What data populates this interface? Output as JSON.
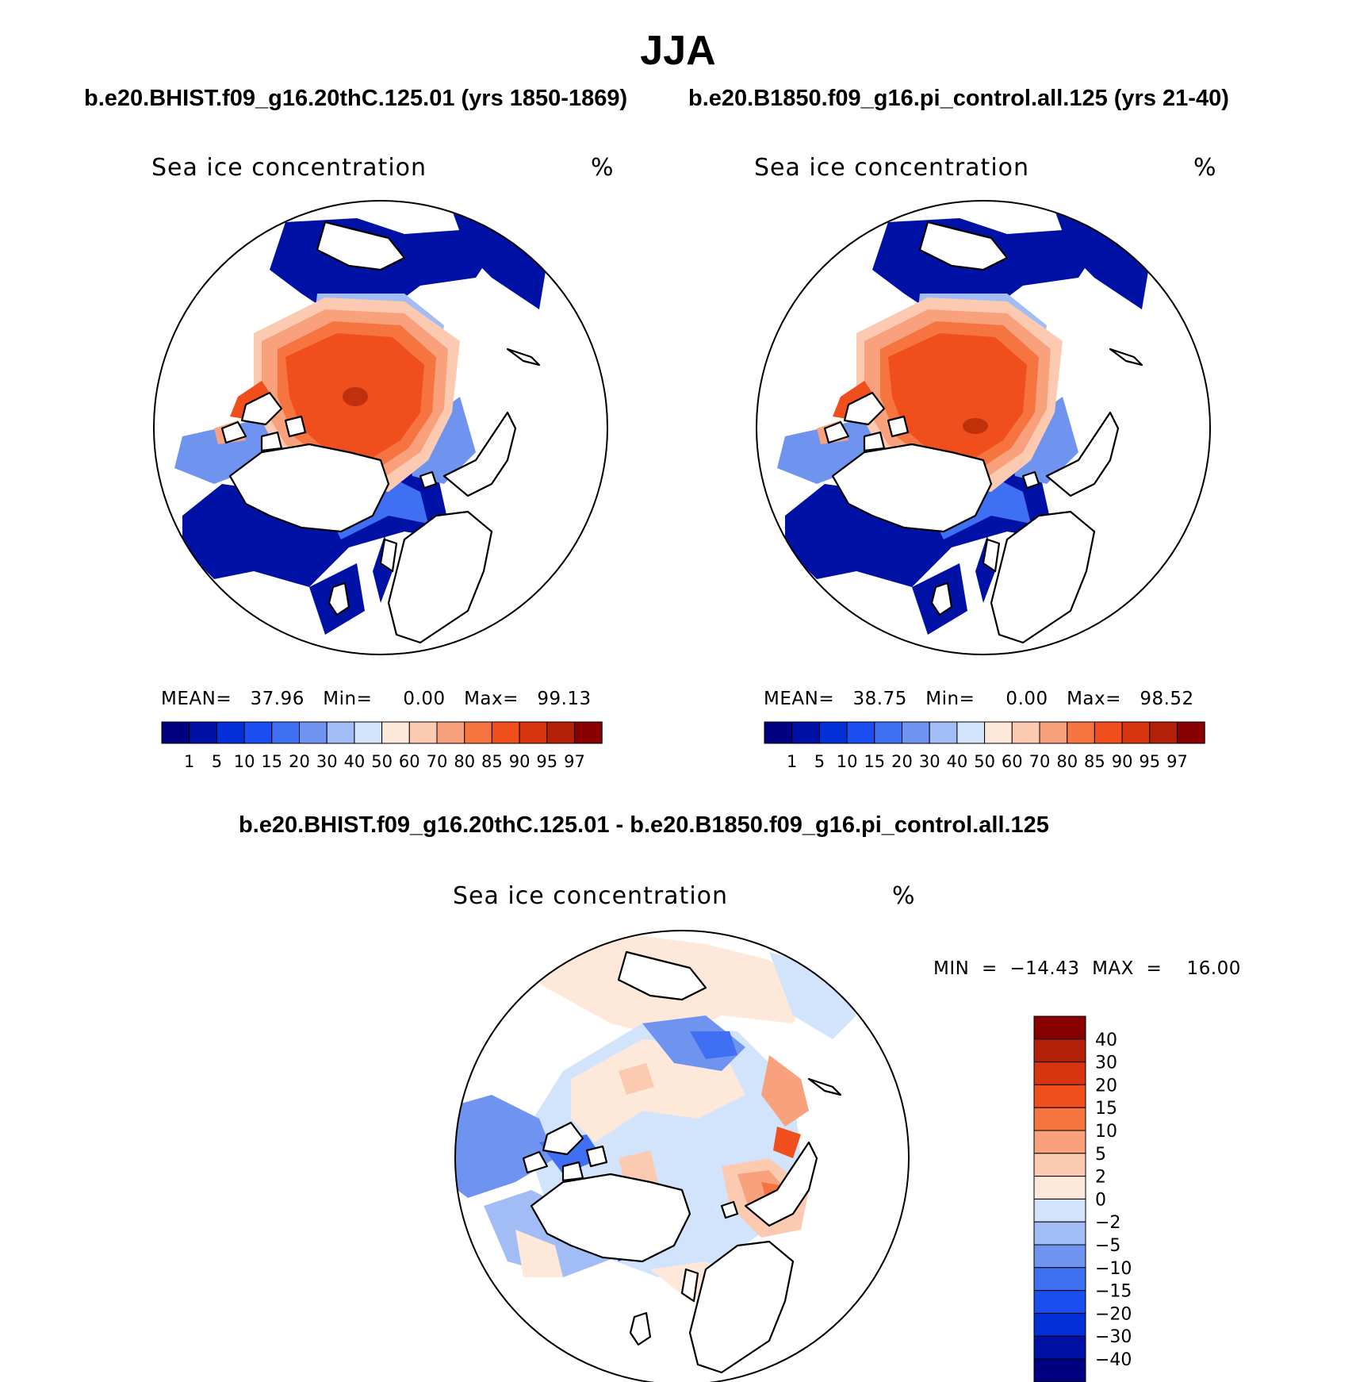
{
  "header": {
    "title": "JJA",
    "left_case": "b.e20.BHIST.f09_g16.20thC.125.01 (yrs 1850-1869)",
    "right_case": "b.e20.B1850.f09_g16.pi_control.all.125 (yrs 21-40)",
    "diff_title": "b.e20.BHIST.f09_g16.20thC.125.01 - b.e20.B1850.f09_g16.pi_control.all.125"
  },
  "panels": {
    "left": {
      "variable": "Sea ice concentration",
      "units": "%",
      "stats": "MEAN=   37.96   Min=     0.00   Max=   99.13"
    },
    "right": {
      "variable": "Sea ice concentration",
      "units": "%",
      "stats": "MEAN=   38.75   Min=     0.00   Max=   98.52"
    },
    "diff": {
      "variable": "Sea ice concentration",
      "units": "%",
      "stats": "MIN  =  −14.43  MAX  =    16.00"
    }
  },
  "colorbars": {
    "concentration": {
      "labels": [
        "1",
        "5",
        "10",
        "15",
        "20",
        "30",
        "40",
        "50",
        "60",
        "70",
        "80",
        "85",
        "90",
        "95",
        "97"
      ],
      "colors": [
        "#000080",
        "#0011a6",
        "#0230d6",
        "#1a4ef0",
        "#3f6ff2",
        "#6f94f0",
        "#a2bdf5",
        "#d2e4fb",
        "#fde8da",
        "#fbcab0",
        "#f9a17c",
        "#f6743f",
        "#f04f1d",
        "#d93410",
        "#b32008",
        "#880000"
      ]
    },
    "difference": {
      "labels": [
        "40",
        "30",
        "20",
        "15",
        "10",
        "5",
        "2",
        "0",
        "−2",
        "−5",
        "−10",
        "−15",
        "−20",
        "−30",
        "−40"
      ],
      "colors": [
        "#880000",
        "#b32008",
        "#d93410",
        "#f04f1d",
        "#f6743f",
        "#f9a17c",
        "#fbcab0",
        "#fde8da",
        "#d2e4fb",
        "#a2bdf5",
        "#6f94f0",
        "#3f6ff2",
        "#1a4ef0",
        "#0230d6",
        "#0011a6",
        "#000080"
      ]
    }
  }
}
